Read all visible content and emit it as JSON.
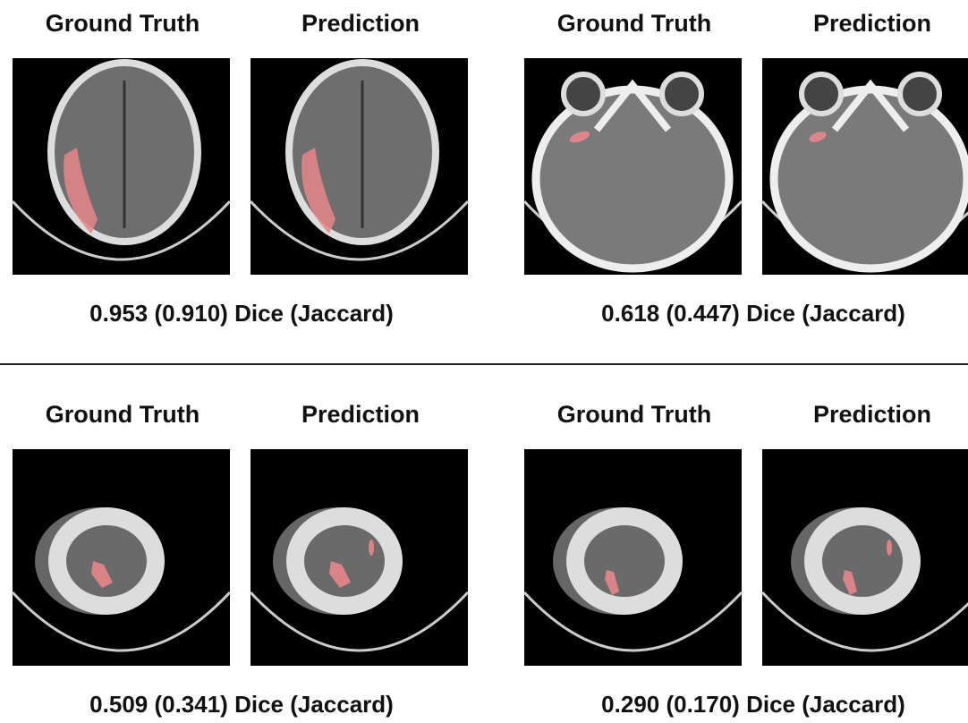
{
  "panels": [
    {
      "left_label": "Ground Truth",
      "right_label": "Prediction",
      "caption": "0.953 (0.910) Dice (Jaccard)"
    },
    {
      "left_label": "Ground Truth",
      "right_label": "Prediction",
      "caption": "0.618 (0.447) Dice (Jaccard)"
    },
    {
      "left_label": "Ground Truth",
      "right_label": "Prediction",
      "caption": "0.509 (0.341) Dice (Jaccard)"
    },
    {
      "left_label": "Ground Truth",
      "right_label": "Prediction",
      "caption": "0.290 (0.170) Dice (Jaccard)"
    }
  ]
}
